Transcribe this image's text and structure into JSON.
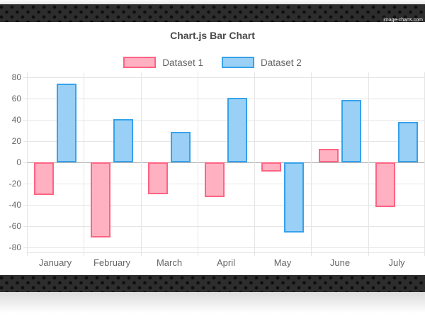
{
  "watermark": "image-charts.com",
  "chart_data": {
    "type": "bar",
    "title": "Chart.js Bar Chart",
    "categories": [
      "January",
      "February",
      "March",
      "April",
      "May",
      "June",
      "July"
    ],
    "series": [
      {
        "name": "Dataset 1",
        "border_color": "#ff6384",
        "fill_color": "#ffb1c1",
        "values": [
          -31,
          -71,
          -30,
          -33,
          -9,
          13,
          -42
        ]
      },
      {
        "name": "Dataset 2",
        "border_color": "#36a2eb",
        "fill_color": "#9ad0f5",
        "values": [
          74,
          41,
          29,
          61,
          -66,
          59,
          38
        ]
      }
    ],
    "y_ticks": [
      80,
      60,
      40,
      20,
      0,
      -20,
      -40,
      -60,
      -80
    ],
    "ylim": [
      -85,
      85
    ],
    "grid": true,
    "legend_position": "top",
    "colors": {
      "grid": "#e5e5e5",
      "zero_line": "#b5b5b5",
      "axis_text": "#666666",
      "title_text": "#4a4a4a"
    }
  }
}
